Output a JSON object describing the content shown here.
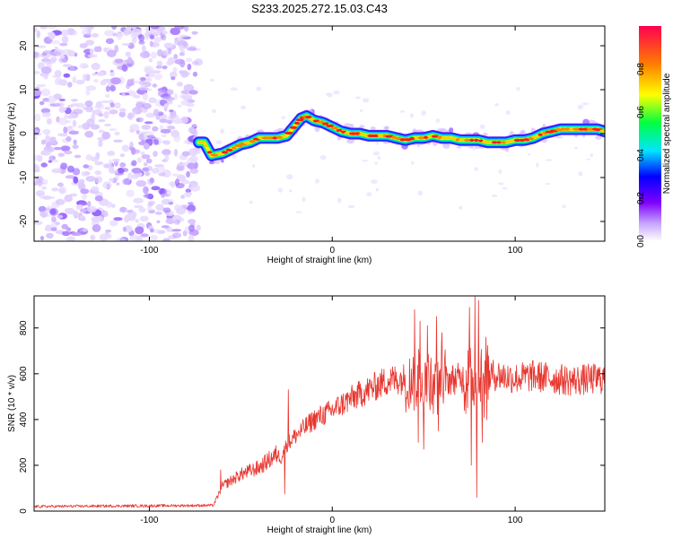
{
  "title": "S233.2025.272.15.03.C43",
  "chart_data": [
    {
      "type": "heatmap",
      "xlabel": "Height of straight line (km)",
      "ylabel": "Frequency (Hz)",
      "xlim": [
        -163,
        149
      ],
      "ylim": [
        -24.5,
        24.5
      ],
      "x_ticks": [
        -100,
        0,
        100
      ],
      "y_ticks": [
        -20,
        -10,
        0,
        10,
        20
      ],
      "noise_region_x": [
        -163,
        -73
      ],
      "colorbar": {
        "label": "Normalized spectral amplitude",
        "range": [
          0,
          1
        ],
        "ticks": [
          0.0,
          0.2,
          0.4,
          0.6,
          0.8
        ]
      },
      "ridge": {
        "x": [
          -73,
          -70,
          -66,
          -60,
          -55,
          -50,
          -45,
          -40,
          -35,
          -30,
          -25,
          -20,
          -17,
          -14,
          -10,
          -5,
          0,
          5,
          10,
          15,
          20,
          25,
          30,
          35,
          40,
          45,
          50,
          55,
          60,
          65,
          70,
          75,
          80,
          85,
          90,
          95,
          100,
          105,
          110,
          115,
          120,
          125,
          130,
          135,
          140,
          145,
          149
        ],
        "y": [
          -2,
          -2,
          -5,
          -4.5,
          -3.5,
          -2.5,
          -2,
          -1,
          -1,
          -1,
          -0.5,
          2,
          3.5,
          4,
          3,
          2.5,
          1.5,
          0.5,
          0,
          0,
          -0.5,
          -0.5,
          -0.5,
          -1,
          -1.5,
          -1,
          -1,
          -0.5,
          -1,
          -1,
          -1.5,
          -1.5,
          -1.5,
          -2,
          -2,
          -2,
          -1.5,
          -1.5,
          -1,
          0,
          0.5,
          1,
          1,
          1,
          1,
          1,
          0.5
        ]
      }
    },
    {
      "type": "line",
      "xlabel": "Height of straight line (km)",
      "ylabel": "SNR (10 * v/v)",
      "xlim": [
        -163,
        149
      ],
      "ylim": [
        0,
        940
      ],
      "x_ticks": [
        -100,
        0,
        100
      ],
      "y_ticks": [
        0,
        200,
        400,
        600,
        800
      ],
      "color": "#e8352e",
      "envelope": {
        "x": [
          -163,
          -65,
          -60,
          -50,
          -40,
          -30,
          -28,
          -25,
          -20,
          -10,
          0,
          10,
          20,
          30,
          40,
          50,
          60,
          70,
          80,
          90,
          100,
          110,
          120,
          130,
          140,
          149
        ],
        "y": [
          20,
          25,
          110,
          160,
          190,
          250,
          230,
          290,
          330,
          400,
          440,
          490,
          530,
          570,
          580,
          570,
          570,
          580,
          590,
          595,
          580,
          590,
          580,
          570,
          575,
          580
        ]
      },
      "spikes": [
        {
          "x": -61,
          "y": 180
        },
        {
          "x": -24,
          "y": 530
        },
        {
          "x": -26,
          "y": 75
        },
        {
          "x": 45,
          "y": 880
        },
        {
          "x": 47,
          "y": 300
        },
        {
          "x": 48,
          "y": 830
        },
        {
          "x": 50,
          "y": 270
        },
        {
          "x": 52,
          "y": 810
        },
        {
          "x": 57,
          "y": 850
        },
        {
          "x": 58,
          "y": 350
        },
        {
          "x": 60,
          "y": 780
        },
        {
          "x": 75,
          "y": 890
        },
        {
          "x": 76,
          "y": 200
        },
        {
          "x": 78,
          "y": 940
        },
        {
          "x": 79,
          "y": 60
        },
        {
          "x": 80,
          "y": 920
        },
        {
          "x": 82,
          "y": 300
        },
        {
          "x": 84,
          "y": 760
        }
      ]
    }
  ]
}
